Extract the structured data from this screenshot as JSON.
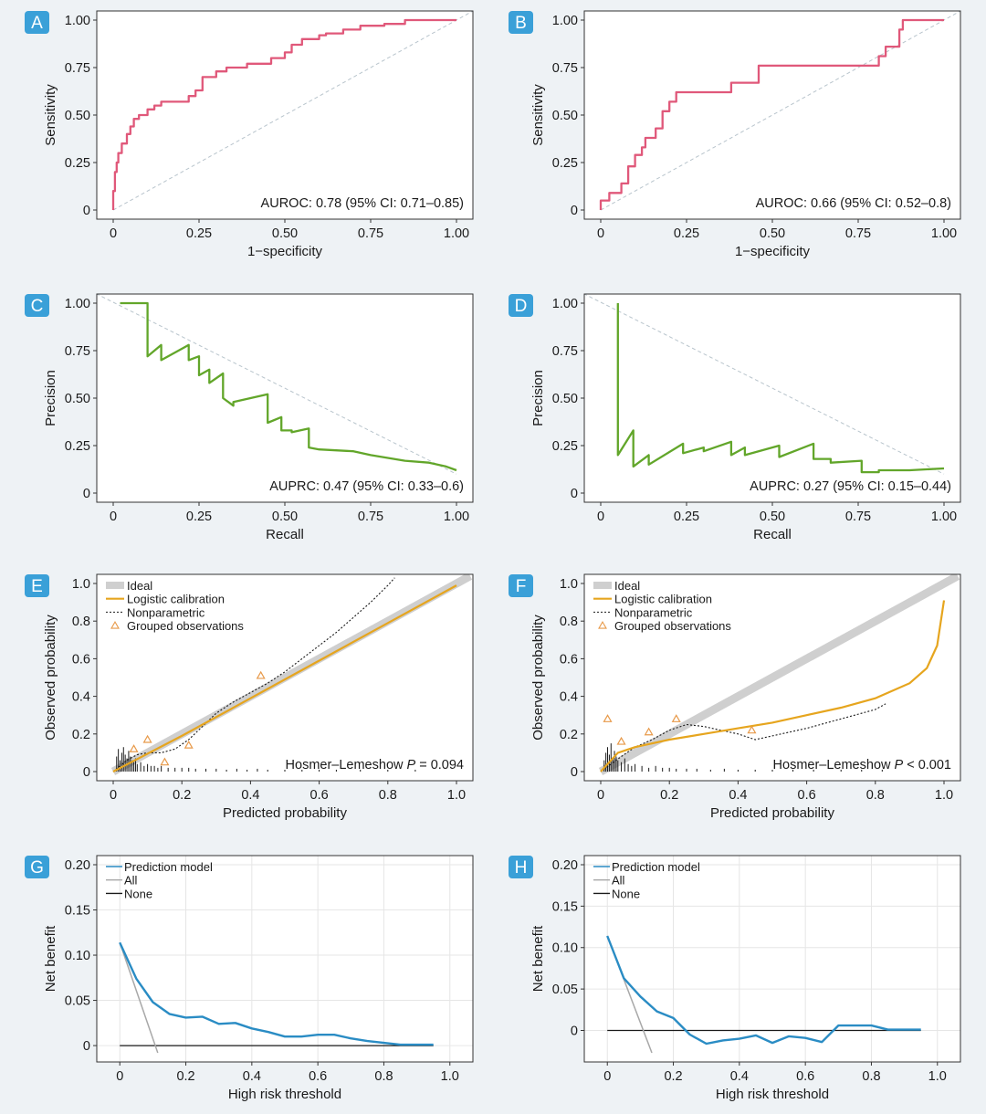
{
  "colors": {
    "roc": "#e0587a",
    "pr": "#62a62a",
    "logistic": "#e6a51e",
    "nonparam": "#1a1a1a",
    "ideal": "#cfcfcf",
    "observations": "#e89a4a",
    "dca_model": "#2a8cc4",
    "dca_all": "#a8a8a8",
    "dca_none": "#1a1a1a",
    "badge": "#3aa0d8",
    "ref_line": "#b8c4cc"
  },
  "chart_data": [
    {
      "id": "A",
      "type": "line",
      "xlabel": "1−specificity",
      "ylabel": "Sensitivity",
      "xlim": [
        0,
        1
      ],
      "ylim": [
        0,
        1
      ],
      "xticks": [
        0,
        0.25,
        0.5,
        0.75,
        1.0
      ],
      "xtick_labels": [
        "0",
        "0.25",
        "0.50",
        "0.75",
        "1.00"
      ],
      "yticks": [
        0,
        0.25,
        0.5,
        0.75,
        1.0
      ],
      "ytick_labels": [
        "0",
        "0.25",
        "0.50",
        "0.75",
        "1.00"
      ],
      "annotation": "AUROC: 0.78 (95% CI: 0.71–0.85)",
      "reference": "diagonal-up",
      "series": [
        {
          "color_key": "roc",
          "x": [
            0,
            0,
            0.005,
            0.005,
            0.01,
            0.01,
            0.015,
            0.015,
            0.025,
            0.025,
            0.04,
            0.04,
            0.05,
            0.05,
            0.06,
            0.06,
            0.075,
            0.075,
            0.1,
            0.1,
            0.12,
            0.12,
            0.14,
            0.14,
            0.22,
            0.22,
            0.24,
            0.24,
            0.26,
            0.26,
            0.3,
            0.3,
            0.33,
            0.33,
            0.39,
            0.39,
            0.46,
            0.46,
            0.5,
            0.5,
            0.52,
            0.52,
            0.55,
            0.55,
            0.6,
            0.6,
            0.62,
            0.62,
            0.67,
            0.67,
            0.72,
            0.72,
            0.79,
            0.79,
            0.85,
            0.85,
            0.92,
            1.0
          ],
          "y": [
            0,
            0.1,
            0.1,
            0.2,
            0.2,
            0.25,
            0.25,
            0.3,
            0.3,
            0.35,
            0.35,
            0.4,
            0.4,
            0.44,
            0.44,
            0.48,
            0.48,
            0.5,
            0.5,
            0.53,
            0.53,
            0.55,
            0.55,
            0.57,
            0.57,
            0.6,
            0.6,
            0.63,
            0.63,
            0.7,
            0.7,
            0.73,
            0.73,
            0.75,
            0.75,
            0.77,
            0.77,
            0.8,
            0.8,
            0.83,
            0.83,
            0.87,
            0.87,
            0.9,
            0.9,
            0.92,
            0.92,
            0.93,
            0.93,
            0.95,
            0.95,
            0.97,
            0.97,
            0.98,
            0.98,
            1.0,
            1.0,
            1.0
          ]
        }
      ]
    },
    {
      "id": "B",
      "type": "line",
      "xlabel": "1−specificity",
      "ylabel": "Sensitivity",
      "xlim": [
        0,
        1
      ],
      "ylim": [
        0,
        1
      ],
      "xticks": [
        0,
        0.25,
        0.5,
        0.75,
        1.0
      ],
      "xtick_labels": [
        "0",
        "0.25",
        "0.50",
        "0.75",
        "1.00"
      ],
      "yticks": [
        0,
        0.25,
        0.5,
        0.75,
        1.0
      ],
      "ytick_labels": [
        "0",
        "0.25",
        "0.50",
        "0.75",
        "1.00"
      ],
      "annotation": "AUROC: 0.66 (95% CI: 0.52–0.8)",
      "reference": "diagonal-up",
      "series": [
        {
          "color_key": "roc",
          "x": [
            0,
            0,
            0.025,
            0.025,
            0.06,
            0.06,
            0.08,
            0.08,
            0.1,
            0.1,
            0.12,
            0.12,
            0.13,
            0.13,
            0.16,
            0.16,
            0.18,
            0.18,
            0.2,
            0.2,
            0.22,
            0.22,
            0.38,
            0.38,
            0.46,
            0.46,
            0.81,
            0.81,
            0.83,
            0.83,
            0.87,
            0.87,
            0.88,
            0.88,
            1.0
          ],
          "y": [
            0,
            0.05,
            0.05,
            0.09,
            0.09,
            0.14,
            0.14,
            0.23,
            0.23,
            0.29,
            0.29,
            0.33,
            0.33,
            0.38,
            0.38,
            0.43,
            0.43,
            0.52,
            0.52,
            0.57,
            0.57,
            0.62,
            0.62,
            0.67,
            0.67,
            0.76,
            0.76,
            0.81,
            0.81,
            0.86,
            0.86,
            0.95,
            0.95,
            1.0,
            1.0
          ]
        }
      ]
    },
    {
      "id": "C",
      "type": "line",
      "xlabel": "Recall",
      "ylabel": "Precision",
      "xlim": [
        0,
        1
      ],
      "ylim": [
        0,
        1
      ],
      "xticks": [
        0,
        0.25,
        0.5,
        0.75,
        1.0
      ],
      "xtick_labels": [
        "0",
        "0.25",
        "0.50",
        "0.75",
        "1.00"
      ],
      "yticks": [
        0,
        0.25,
        0.5,
        0.75,
        1.0
      ],
      "ytick_labels": [
        "0",
        "0.25",
        "0.50",
        "0.75",
        "1.00"
      ],
      "annotation": "AUPRC: 0.47 (95% CI: 0.33–0.6)",
      "reference": "diagonal-down",
      "series": [
        {
          "color_key": "pr",
          "x": [
            0.02,
            0.1,
            0.1,
            0.14,
            0.14,
            0.22,
            0.22,
            0.25,
            0.25,
            0.28,
            0.28,
            0.32,
            0.32,
            0.35,
            0.35,
            0.45,
            0.45,
            0.49,
            0.49,
            0.52,
            0.52,
            0.57,
            0.57,
            0.6,
            0.6,
            0.7,
            0.7,
            0.75,
            0.75,
            0.85,
            0.85,
            0.92,
            0.92,
            0.97,
            1.0
          ],
          "y": [
            1.0,
            1.0,
            0.72,
            0.78,
            0.7,
            0.78,
            0.7,
            0.72,
            0.62,
            0.65,
            0.58,
            0.63,
            0.5,
            0.46,
            0.48,
            0.52,
            0.37,
            0.4,
            0.33,
            0.33,
            0.32,
            0.34,
            0.24,
            0.23,
            0.23,
            0.22,
            0.22,
            0.2,
            0.2,
            0.17,
            0.17,
            0.16,
            0.16,
            0.14,
            0.12
          ]
        }
      ]
    },
    {
      "id": "D",
      "type": "line",
      "xlabel": "Recall",
      "ylabel": "Precision",
      "xlim": [
        0,
        1
      ],
      "ylim": [
        0,
        1
      ],
      "xticks": [
        0,
        0.25,
        0.5,
        0.75,
        1.0
      ],
      "xtick_labels": [
        "0",
        "0.25",
        "0.50",
        "0.75",
        "1.00"
      ],
      "yticks": [
        0,
        0.25,
        0.5,
        0.75,
        1.0
      ],
      "ytick_labels": [
        "0",
        "0.25",
        "0.50",
        "0.75",
        "1.00"
      ],
      "annotation": "AUPRC: 0.27 (95% CI: 0.15–0.44)",
      "reference": "diagonal-down",
      "series": [
        {
          "color_key": "pr",
          "x": [
            0.05,
            0.05,
            0.095,
            0.095,
            0.14,
            0.14,
            0.24,
            0.24,
            0.3,
            0.3,
            0.38,
            0.38,
            0.42,
            0.42,
            0.52,
            0.52,
            0.62,
            0.62,
            0.67,
            0.67,
            0.76,
            0.76,
            0.81,
            0.81,
            0.9,
            0.9,
            1.0
          ],
          "y": [
            1.0,
            0.2,
            0.33,
            0.14,
            0.2,
            0.15,
            0.26,
            0.21,
            0.24,
            0.22,
            0.27,
            0.2,
            0.24,
            0.2,
            0.25,
            0.19,
            0.26,
            0.18,
            0.18,
            0.16,
            0.17,
            0.11,
            0.11,
            0.12,
            0.12,
            0.12,
            0.13
          ]
        }
      ]
    },
    {
      "id": "E",
      "type": "line",
      "xlabel": "Predicted probability",
      "ylabel": "Observed probability",
      "xlim": [
        0,
        1
      ],
      "ylim": [
        0,
        1
      ],
      "xticks": [
        0,
        0.2,
        0.4,
        0.6,
        0.8,
        1.0
      ],
      "xtick_labels": [
        "0",
        "0.2",
        "0.4",
        "0.6",
        "0.8",
        "1.0"
      ],
      "yticks": [
        0,
        0.2,
        0.4,
        0.6,
        0.8,
        1.0
      ],
      "ytick_labels": [
        "0",
        "0.2",
        "0.4",
        "0.6",
        "0.8",
        "1.0"
      ],
      "annotation": "Hosmer–Lemeshow P = 0.094",
      "legend": [
        "Ideal",
        "Logistic calibration",
        "Nonparametric",
        "Grouped observations"
      ],
      "legend_position": "top-left",
      "ideal": {
        "x": [
          0,
          1.04
        ],
        "y": [
          0,
          1.04
        ]
      },
      "logistic": {
        "x": [
          0,
          0.2,
          0.4,
          0.6,
          0.8,
          1.0
        ],
        "y": [
          0,
          0.19,
          0.39,
          0.59,
          0.79,
          0.99
        ]
      },
      "nonparametric": {
        "x": [
          0,
          0.04,
          0.07,
          0.1,
          0.14,
          0.18,
          0.22,
          0.26,
          0.3,
          0.35,
          0.4,
          0.45,
          0.5,
          0.55,
          0.6,
          0.65,
          0.7,
          0.75,
          0.8,
          0.82
        ],
        "y": [
          0,
          0.06,
          0.09,
          0.1,
          0.1,
          0.12,
          0.17,
          0.24,
          0.31,
          0.37,
          0.42,
          0.47,
          0.53,
          0.6,
          0.67,
          0.74,
          0.82,
          0.9,
          0.99,
          1.03
        ]
      },
      "observations": {
        "x": [
          0.06,
          0.1,
          0.15,
          0.22,
          0.43
        ],
        "y": [
          0.12,
          0.17,
          0.05,
          0.14,
          0.51
        ]
      },
      "rug": [
        0.01,
        0.015,
        0.02,
        0.025,
        0.03,
        0.035,
        0.04,
        0.045,
        0.05,
        0.055,
        0.06,
        0.065,
        0.07,
        0.08,
        0.09,
        0.1,
        0.11,
        0.12,
        0.13,
        0.14,
        0.16,
        0.18,
        0.2,
        0.22,
        0.24,
        0.27,
        0.3,
        0.33,
        0.36,
        0.39,
        0.42,
        0.45,
        0.5,
        0.55,
        0.6,
        0.65,
        0.72,
        0.8,
        0.88
      ],
      "rug_heights": [
        0.08,
        0.12,
        0.06,
        0.1,
        0.13,
        0.09,
        0.07,
        0.11,
        0.08,
        0.06,
        0.05,
        0.07,
        0.04,
        0.05,
        0.03,
        0.04,
        0.03,
        0.03,
        0.02,
        0.03,
        0.02,
        0.02,
        0.02,
        0.02,
        0.015,
        0.015,
        0.015,
        0.01,
        0.015,
        0.01,
        0.015,
        0.01,
        0.01,
        0.01,
        0.01,
        0.01,
        0.01,
        0.01,
        0.01
      ]
    },
    {
      "id": "F",
      "type": "line",
      "xlabel": "Predicted probability",
      "ylabel": "Observed probability",
      "xlim": [
        0,
        1
      ],
      "ylim": [
        0,
        1
      ],
      "xticks": [
        0,
        0.2,
        0.4,
        0.6,
        0.8,
        1.0
      ],
      "xtick_labels": [
        "0",
        "0.2",
        "0.4",
        "0.6",
        "0.8",
        "1.0"
      ],
      "yticks": [
        0,
        0.2,
        0.4,
        0.6,
        0.8,
        1.0
      ],
      "ytick_labels": [
        "0",
        "0.2",
        "0.4",
        "0.6",
        "0.8",
        "1.0"
      ],
      "annotation": "Hosmer–Lemeshow P < 0.001",
      "legend": [
        "Ideal",
        "Logistic calibration",
        "Nonparametric",
        "Grouped observations"
      ],
      "legend_position": "top-left",
      "ideal": {
        "x": [
          0,
          1.04
        ],
        "y": [
          0,
          1.04
        ]
      },
      "logistic": {
        "x": [
          0,
          0.05,
          0.1,
          0.2,
          0.3,
          0.4,
          0.5,
          0.6,
          0.7,
          0.8,
          0.9,
          0.95,
          0.98,
          1.0
        ],
        "y": [
          0,
          0.1,
          0.13,
          0.17,
          0.2,
          0.23,
          0.26,
          0.3,
          0.34,
          0.39,
          0.47,
          0.55,
          0.67,
          0.91
        ]
      },
      "nonparametric": {
        "x": [
          0,
          0.03,
          0.06,
          0.1,
          0.15,
          0.2,
          0.25,
          0.3,
          0.35,
          0.4,
          0.45,
          0.5,
          0.6,
          0.7,
          0.8,
          0.83
        ],
        "y": [
          0,
          0.04,
          0.08,
          0.13,
          0.17,
          0.22,
          0.25,
          0.24,
          0.22,
          0.2,
          0.17,
          0.19,
          0.23,
          0.28,
          0.33,
          0.36
        ]
      },
      "observations": {
        "x": [
          0.02,
          0.06,
          0.14,
          0.22,
          0.44
        ],
        "y": [
          0.28,
          0.16,
          0.21,
          0.28,
          0.22
        ]
      },
      "rug": [
        0.01,
        0.015,
        0.02,
        0.025,
        0.03,
        0.035,
        0.04,
        0.045,
        0.05,
        0.06,
        0.07,
        0.08,
        0.09,
        0.1,
        0.12,
        0.14,
        0.16,
        0.18,
        0.2,
        0.22,
        0.25,
        0.28,
        0.32,
        0.36,
        0.4,
        0.45,
        0.5,
        0.56,
        0.62,
        0.7,
        0.76,
        0.82
      ],
      "rug_heights": [
        0.06,
        0.1,
        0.13,
        0.09,
        0.15,
        0.07,
        0.11,
        0.08,
        0.06,
        0.05,
        0.07,
        0.04,
        0.03,
        0.04,
        0.03,
        0.02,
        0.03,
        0.02,
        0.02,
        0.015,
        0.015,
        0.015,
        0.01,
        0.015,
        0.01,
        0.01,
        0.01,
        0.01,
        0.01,
        0.01,
        0.01,
        0.01
      ]
    },
    {
      "id": "G",
      "type": "line",
      "xlabel": "High risk threshold",
      "ylabel": "Net benefit",
      "xlim": [
        -0.02,
        1.02
      ],
      "ylim": [
        -0.008,
        0.2
      ],
      "xticks": [
        0,
        0.2,
        0.4,
        0.6,
        0.8,
        1.0
      ],
      "xtick_labels": [
        "0",
        "0.2",
        "0.4",
        "0.6",
        "0.8",
        "1.0"
      ],
      "yticks": [
        0,
        0.05,
        0.1,
        0.15,
        0.2
      ],
      "ytick_labels": [
        "0",
        "0.05",
        "0.10",
        "0.15",
        "0.20"
      ],
      "legend": [
        "Prediction model",
        "All",
        "None"
      ],
      "legend_position": "top-left",
      "model": {
        "x": [
          0,
          0.05,
          0.1,
          0.15,
          0.2,
          0.25,
          0.3,
          0.35,
          0.4,
          0.45,
          0.5,
          0.55,
          0.6,
          0.65,
          0.7,
          0.75,
          0.8,
          0.85,
          0.9,
          0.95
        ],
        "y": [
          0.114,
          0.074,
          0.048,
          0.035,
          0.031,
          0.032,
          0.024,
          0.025,
          0.019,
          0.015,
          0.01,
          0.01,
          0.012,
          0.012,
          0.008,
          0.005,
          0.003,
          0.001,
          0.001,
          0.001
        ]
      },
      "all": {
        "x": [
          0,
          0.115
        ],
        "y": [
          0.114,
          -0.008
        ]
      },
      "none": {
        "x": [
          0,
          0.95
        ],
        "y": [
          0,
          0
        ]
      }
    },
    {
      "id": "H",
      "type": "line",
      "xlabel": "High risk threshold",
      "ylabel": "Net benefit",
      "xlim": [
        -0.02,
        1.02
      ],
      "ylim": [
        -0.027,
        0.2
      ],
      "xticks": [
        0,
        0.2,
        0.4,
        0.6,
        0.8,
        1.0
      ],
      "xtick_labels": [
        "0",
        "0.2",
        "0.4",
        "0.6",
        "0.8",
        "1.0"
      ],
      "yticks": [
        0,
        0.05,
        0.1,
        0.15,
        0.2
      ],
      "ytick_labels": [
        "0",
        "0.05",
        "0.10",
        "0.15",
        "0.20"
      ],
      "legend": [
        "Prediction model",
        "All",
        "None"
      ],
      "legend_position": "top-left",
      "model": {
        "x": [
          0,
          0.05,
          0.1,
          0.15,
          0.2,
          0.25,
          0.3,
          0.35,
          0.4,
          0.45,
          0.5,
          0.55,
          0.6,
          0.65,
          0.7,
          0.75,
          0.8,
          0.85,
          0.9,
          0.95
        ],
        "y": [
          0.114,
          0.063,
          0.041,
          0.023,
          0.015,
          -0.005,
          -0.016,
          -0.012,
          -0.01,
          -0.006,
          -0.015,
          -0.007,
          -0.009,
          -0.014,
          0.006,
          0.006,
          0.006,
          0.001,
          0.001,
          0.001
        ]
      },
      "all": {
        "x": [
          0,
          0.135
        ],
        "y": [
          0.114,
          -0.027
        ]
      },
      "none": {
        "x": [
          0,
          0.95
        ],
        "y": [
          0,
          0
        ]
      }
    }
  ]
}
